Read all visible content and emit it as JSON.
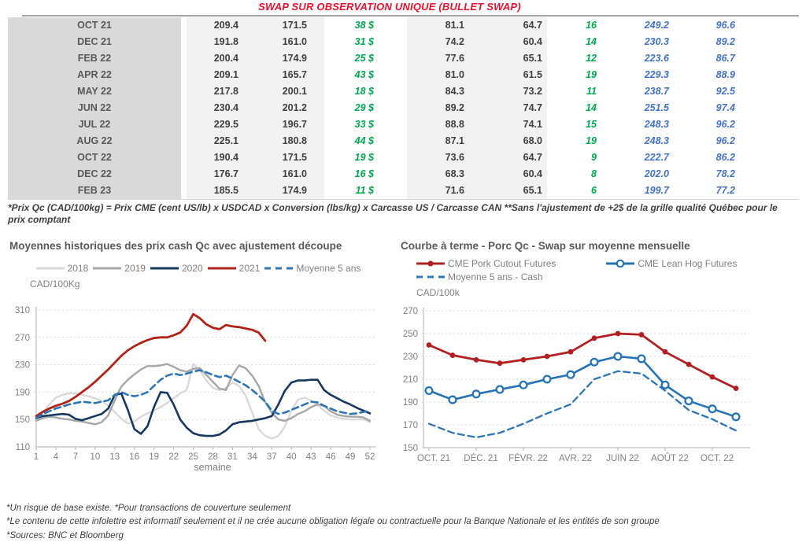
{
  "title": "SWAP SUR OBSERVATION UNIQUE (BULLET SWAP)",
  "colors": {
    "title_red": "#e8112d",
    "green_value": "#00a651",
    "blue_value": "#4472c4",
    "month_bg": "#d9d9d9",
    "num_bg": "#f2f2f2",
    "axis_text": "#808080",
    "grid": "#d9d9d9"
  },
  "table": {
    "rows": [
      {
        "month": "OCT 21",
        "values": [
          "209.4",
          "171.5",
          "38 $",
          "81.1",
          "64.7",
          "16",
          "249.2",
          "96.6"
        ]
      },
      {
        "month": "DEC 21",
        "values": [
          "191.8",
          "161.0",
          "31 $",
          "74.2",
          "60.4",
          "14",
          "230.3",
          "89.2"
        ]
      },
      {
        "month": "FEB 22",
        "values": [
          "200.4",
          "174.9",
          "25 $",
          "77.6",
          "65.1",
          "12",
          "223.6",
          "86.7"
        ]
      },
      {
        "month": "APR 22",
        "values": [
          "209.1",
          "165.7",
          "43 $",
          "81.0",
          "61.5",
          "19",
          "229.3",
          "88.9"
        ]
      },
      {
        "month": "MAY 22",
        "values": [
          "217.8",
          "200.1",
          "18 $",
          "84.3",
          "73.2",
          "11",
          "238.7",
          "92.5"
        ]
      },
      {
        "month": "JUN 22",
        "values": [
          "230.4",
          "201.2",
          "29 $",
          "89.2",
          "74.7",
          "14",
          "251.5",
          "97.4"
        ]
      },
      {
        "month": "JUL 22",
        "values": [
          "229.5",
          "196.7",
          "33 $",
          "88.8",
          "74.1",
          "15",
          "248.3",
          "96.2"
        ]
      },
      {
        "month": "AUG 22",
        "values": [
          "225.1",
          "180.8",
          "44 $",
          "87.1",
          "68.0",
          "19",
          "248.3",
          "96.2"
        ]
      },
      {
        "month": "OCT 22",
        "values": [
          "190.4",
          "171.5",
          "19 $",
          "73.6",
          "64.7",
          "9",
          "222.7",
          "86.2"
        ]
      },
      {
        "month": "DEC 22",
        "values": [
          "176.7",
          "161.0",
          "16 $",
          "68.3",
          "60.4",
          "8",
          "202.0",
          "78.2"
        ]
      },
      {
        "month": "FEB 23",
        "values": [
          "185.5",
          "174.9",
          "11 $",
          "71.6",
          "65.1",
          "6",
          "199.7",
          "77.2"
        ]
      }
    ]
  },
  "table_footnote": "*Prix Qc (CAD/100kg) = Prix CME (cent US/lb) x USDCAD x Conversion (lbs/kg) x Carcasse US / Carcasse CAN **Sans l'ajustement de +2$ de la grille qualité Québec pour le prix comptant",
  "chart_data": [
    {
      "type": "line",
      "title": "Moyennes historiques des prix cash Qc avec ajustement découpe",
      "ylabel": "CAD/100Kg",
      "xlabel": "semaine",
      "ylim": [
        110,
        310
      ],
      "yticks": [
        110,
        150,
        190,
        230,
        270,
        310
      ],
      "xticks": [
        1,
        4,
        7,
        10,
        13,
        16,
        19,
        22,
        25,
        28,
        31,
        34,
        37,
        40,
        43,
        46,
        49,
        52
      ],
      "x_range": [
        1,
        52
      ],
      "grid": "dashed-horizontal",
      "legend_position": "top-center",
      "series": [
        {
          "name": "2018",
          "color": "#d9d9d9",
          "dash": false,
          "width": 2.4,
          "values": [
            150,
            160,
            172,
            182,
            186,
            188,
            188,
            186,
            184,
            181,
            177,
            170,
            161,
            151,
            144,
            147,
            154,
            159,
            163,
            168,
            174,
            181,
            188,
            193,
            231,
            222,
            207,
            196,
            193,
            196,
            204,
            199,
            185,
            160,
            136,
            126,
            122,
            126,
            140,
            163,
            179,
            182,
            178,
            171,
            163,
            156,
            153,
            151,
            150,
            150,
            150,
            146
          ]
        },
        {
          "name": "2019",
          "color": "#a6a6a6",
          "dash": false,
          "width": 2.4,
          "values": [
            148,
            152,
            154,
            153,
            151,
            150,
            148,
            147,
            145,
            143,
            146,
            156,
            178,
            198,
            208,
            216,
            223,
            228,
            228,
            229,
            231,
            227,
            222,
            220,
            224,
            225,
            215,
            205,
            195,
            193,
            215,
            229,
            225,
            214,
            199,
            175,
            160,
            150,
            148,
            152,
            158,
            162,
            168,
            172,
            170,
            162,
            157,
            155,
            154,
            154,
            153,
            148
          ]
        },
        {
          "name": "2020",
          "color": "#17375e",
          "dash": false,
          "width": 2.6,
          "values": [
            152,
            155,
            156,
            157,
            158,
            157,
            151,
            149,
            152,
            155,
            158,
            166,
            186,
            188,
            164,
            136,
            129,
            140,
            168,
            190,
            189,
            172,
            150,
            138,
            130,
            127,
            126,
            126,
            128,
            134,
            143,
            146,
            147,
            148,
            150,
            152,
            155,
            172,
            192,
            204,
            207,
            207,
            208,
            208,
            193,
            186,
            181,
            176,
            172,
            167,
            163,
            159
          ]
        },
        {
          "name": "2021",
          "color": "#b02418",
          "dash": false,
          "width": 2.8,
          "values": [
            155,
            161,
            166,
            170,
            173,
            177,
            183,
            190,
            197,
            205,
            214,
            223,
            233,
            243,
            251,
            257,
            262,
            266,
            269,
            270,
            270,
            273,
            277,
            287,
            304,
            298,
            289,
            284,
            282,
            288,
            286,
            285,
            283,
            281,
            277,
            265,
            null,
            null,
            null,
            null,
            null,
            null,
            null,
            null,
            null,
            null,
            null,
            null,
            null,
            null,
            null,
            null
          ]
        },
        {
          "name": "Moyenne 5 ans",
          "color": "#2e75b6",
          "dash": true,
          "width": 2.6,
          "values": [
            152,
            158,
            162,
            166,
            169,
            172,
            174,
            176,
            175,
            174,
            176,
            178,
            186,
            190,
            186,
            184,
            186,
            190,
            199,
            208,
            214,
            217,
            215,
            217,
            220,
            222,
            219,
            215,
            212,
            214,
            210,
            205,
            200,
            193,
            185,
            176,
            163,
            158,
            160,
            164,
            168,
            172,
            176,
            175,
            170,
            166,
            162,
            160,
            158,
            159,
            161,
            163
          ]
        }
      ]
    },
    {
      "type": "line",
      "title": "Courbe à terme - Porc Qc - Swap sur moyenne mensuelle",
      "ylabel": "CAD/100k",
      "ylim": [
        150,
        270
      ],
      "yticks": [
        150,
        170,
        190,
        210,
        230,
        250,
        270
      ],
      "x_tick_labels": [
        "OCT. 21",
        "DÉC. 21",
        "FÉVR. 22",
        "AVR. 22",
        "JUIN 22",
        "AOÛT 22",
        "OCT. 22"
      ],
      "x_tick_indices": [
        0,
        2,
        4,
        6,
        8,
        10,
        12
      ],
      "n_points": 14,
      "grid": "dashed-horizontal",
      "legend_position": "top-left",
      "series": [
        {
          "name": "CME Pork Cutout Futures",
          "color": "#b02023",
          "dash": false,
          "marker": "filled",
          "width": 2.8,
          "values": [
            240,
            231,
            227,
            224,
            227,
            230,
            234,
            246,
            250,
            249,
            234,
            223,
            212,
            202
          ]
        },
        {
          "name": "CME Lean Hog Futures",
          "color": "#2573b4",
          "dash": false,
          "marker": "open",
          "width": 2.6,
          "values": [
            200,
            192,
            197,
            201,
            205,
            210,
            214,
            225,
            230,
            228,
            205,
            191,
            184,
            177
          ]
        },
        {
          "name": "Moyenne 5 ans - Cash",
          "color": "#2e75b6",
          "dash": true,
          "marker": "none",
          "width": 2.3,
          "values": [
            171,
            163,
            159,
            163,
            171,
            180,
            188,
            210,
            217,
            215,
            200,
            183,
            175,
            165
          ]
        }
      ]
    }
  ],
  "footer": {
    "lines": [
      "*Un risque de base existe. *Pour transactions de couverture seulement",
      "*Le contenu de cette infolettre est informatif seulement et il ne crée aucune obligation légale ou contractuelle pour la Banque Nationale et les entités de son groupe",
      "*Sources: BNC et Bloomberg"
    ]
  }
}
